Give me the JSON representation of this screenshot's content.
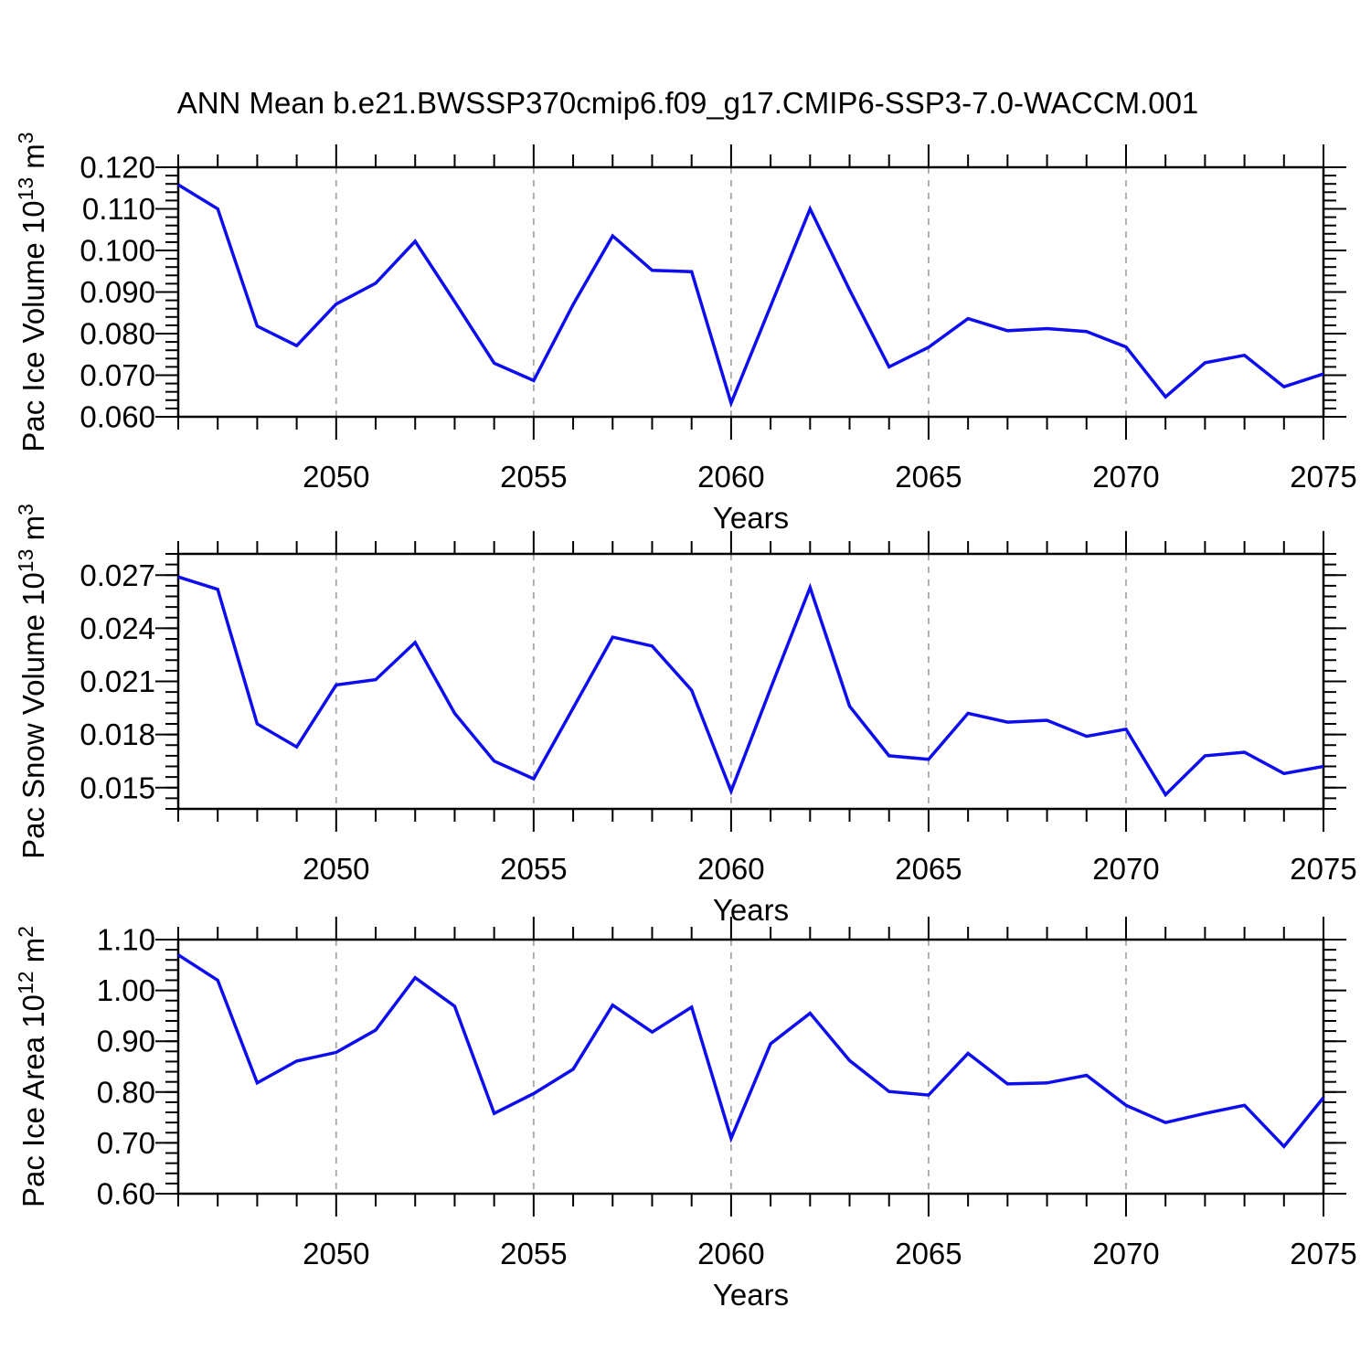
{
  "title": "ANN Mean b.e21.BWSSP370cmip6.f09_g17.CMIP6-SSP3-7.0-WACCM.001",
  "colors": {
    "line": "#0d0df0",
    "grid": "#a8a8a8",
    "axis": "#000000",
    "text": "#000000",
    "background": "#ffffff"
  },
  "x_axis": {
    "label": "Years",
    "range": [
      2046,
      2075
    ],
    "tick_years": [
      2050,
      2055,
      2060,
      2065,
      2070,
      2075
    ],
    "tick_labels": [
      "2050",
      "2055",
      "2060",
      "2065",
      "2070",
      "2075"
    ],
    "minor_step_years": 1,
    "grid_years": [
      2050,
      2055,
      2060,
      2065,
      2070
    ]
  },
  "years": [
    2046,
    2047,
    2048,
    2049,
    2050,
    2051,
    2052,
    2053,
    2054,
    2055,
    2056,
    2057,
    2058,
    2059,
    2060,
    2061,
    2062,
    2063,
    2064,
    2065,
    2066,
    2067,
    2068,
    2069,
    2070,
    2071,
    2072,
    2073,
    2074,
    2075
  ],
  "chart_data": [
    {
      "id": "pac-ice-volume",
      "type": "line",
      "ylabel_text": "Pac Ice Volume 10^13 m^3",
      "ylabel_parts": [
        "Pac Ice Volume 10",
        "13",
        " m",
        "3"
      ],
      "ylim": [
        0.06,
        0.12
      ],
      "yticks": [
        0.06,
        0.07,
        0.08,
        0.09,
        0.1,
        0.11,
        0.12
      ],
      "ytick_labels": [
        "0.060",
        "0.070",
        "0.080",
        "0.090",
        "0.100",
        "0.110",
        "0.120"
      ],
      "y_minor_step": 0.002,
      "grid": true,
      "legend": "none",
      "values": [
        0.1158,
        0.11,
        0.0818,
        0.0771,
        0.0871,
        0.0921,
        0.1022,
        0.0877,
        0.0729,
        0.0687,
        0.087,
        0.1035,
        0.0952,
        0.0949,
        0.0633,
        0.0866,
        0.11,
        0.0905,
        0.072,
        0.0767,
        0.0836,
        0.0807,
        0.0812,
        0.0805,
        0.0768,
        0.0648,
        0.073,
        0.0748,
        0.0672,
        0.0703
      ]
    },
    {
      "id": "pac-snow-volume",
      "type": "line",
      "ylabel_text": "Pac Snow Volume 10^13 m^3",
      "ylabel_parts": [
        "Pac Snow Volume 10",
        "13",
        " m",
        "3"
      ],
      "ylim": [
        0.0138,
        0.0282
      ],
      "yticks": [
        0.015,
        0.018,
        0.021,
        0.024,
        0.027
      ],
      "ytick_labels": [
        "0.015",
        "0.018",
        "0.021",
        "0.024",
        "0.027"
      ],
      "y_minor_step": 0.0006,
      "grid": true,
      "legend": "none",
      "values": [
        0.0269,
        0.0262,
        0.0186,
        0.0173,
        0.0208,
        0.0211,
        0.0232,
        0.0192,
        0.0165,
        0.0155,
        0.0195,
        0.0235,
        0.023,
        0.0205,
        0.0148,
        0.0206,
        0.0263,
        0.0196,
        0.0168,
        0.0166,
        0.0192,
        0.0187,
        0.0188,
        0.0179,
        0.0183,
        0.0146,
        0.0168,
        0.017,
        0.0158,
        0.0162
      ]
    },
    {
      "id": "pac-ice-area",
      "type": "line",
      "ylabel_text": "Pac Ice Area 10^12 m^2",
      "ylabel_parts": [
        "Pac Ice Area 10",
        "12",
        " m",
        "2"
      ],
      "ylim": [
        0.6,
        1.1
      ],
      "yticks": [
        0.6,
        0.7,
        0.8,
        0.9,
        1.0,
        1.1
      ],
      "ytick_labels": [
        "0.60",
        "0.70",
        "0.80",
        "0.90",
        "1.00",
        "1.10"
      ],
      "y_minor_step": 0.02,
      "grid": true,
      "legend": "none",
      "values": [
        1.07,
        1.02,
        0.818,
        0.861,
        0.878,
        0.922,
        1.025,
        0.969,
        0.758,
        0.797,
        0.845,
        0.971,
        0.918,
        0.967,
        0.709,
        0.895,
        0.955,
        0.862,
        0.801,
        0.794,
        0.876,
        0.816,
        0.818,
        0.833,
        0.774,
        0.74,
        0.758,
        0.774,
        0.693,
        0.789
      ]
    }
  ]
}
